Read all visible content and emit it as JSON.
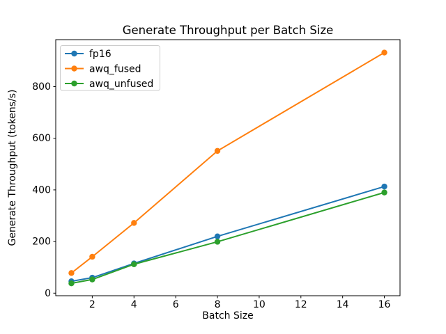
{
  "chart_data": {
    "type": "line",
    "title": "Generate Throughput per Batch Size",
    "xlabel": "Batch Size",
    "ylabel": "Generate Throughput (tokens/s)",
    "x": [
      1,
      2,
      4,
      8,
      16
    ],
    "series": [
      {
        "name": "fp16",
        "color": "#1f77b4",
        "values": [
          46,
          60,
          115,
          220,
          413
        ]
      },
      {
        "name": "awq_fused",
        "color": "#ff7f0e",
        "values": [
          78,
          141,
          272,
          551,
          932
        ]
      },
      {
        "name": "awq_unfused",
        "color": "#2ca02c",
        "values": [
          38,
          53,
          112,
          199,
          390
        ]
      }
    ],
    "xticks": [
      2,
      4,
      6,
      8,
      10,
      12,
      14,
      16
    ],
    "yticks": [
      0,
      200,
      400,
      600,
      800
    ],
    "xlim": [
      0.25,
      16.75
    ],
    "ylim": [
      -10,
      982
    ],
    "grid": false,
    "marker": "o",
    "legend_position": "upper left",
    "frame_color": "#000000",
    "legend_edge_color": "#cccccc",
    "background_color": "#ffffff"
  }
}
